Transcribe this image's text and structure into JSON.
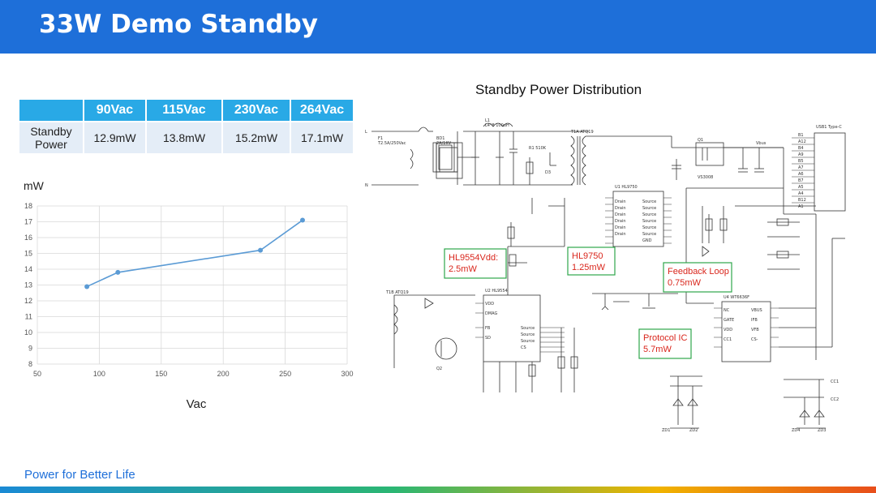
{
  "header": {
    "title": "33W Demo Standby"
  },
  "table": {
    "corner": "",
    "headers": [
      "90Vac",
      "115Vac",
      "230Vac",
      "264Vac"
    ],
    "row_label": "Standby Power",
    "values": [
      "12.9mW",
      "13.8mW",
      "15.2mW",
      "17.1mW"
    ]
  },
  "chart_data": {
    "type": "line",
    "title": "",
    "xlabel": "Vac",
    "ylabel": "mW",
    "x": [
      90,
      115,
      230,
      264
    ],
    "series": [
      {
        "values": [
          12.9,
          13.8,
          15.2,
          17.1
        ]
      }
    ],
    "xlim": [
      50,
      300
    ],
    "ylim": [
      8,
      18
    ],
    "xticks": [
      50,
      100,
      150,
      200,
      250,
      300
    ],
    "yticks": [
      8,
      9,
      10,
      11,
      12,
      13,
      14,
      15,
      16,
      17,
      18
    ],
    "grid": true,
    "line_color": "#5b9bd5"
  },
  "schematic": {
    "title": "Standby Power Distribution",
    "callouts": [
      {
        "name": "HL9554Vdd",
        "line1": "HL9554Vdd:",
        "line2": "2.5mW"
      },
      {
        "name": "HL9750",
        "line1": "HL9750",
        "line2": "1.25mW"
      },
      {
        "name": "Feedback Loop",
        "line1": "Feedback Loop",
        "line2": "0.75mW"
      },
      {
        "name": "Protocol IC",
        "line1": "Protocol IC",
        "line2": "5.7mW"
      }
    ],
    "ic_labels": [
      "HL9554",
      "HL9750",
      "WT6636F",
      "VS3008",
      "USB1 Type-C"
    ],
    "callout_color": "#2ea64b",
    "callout_text_color": "#d9261c"
  },
  "footer": {
    "tagline": "Power for Better Life"
  }
}
